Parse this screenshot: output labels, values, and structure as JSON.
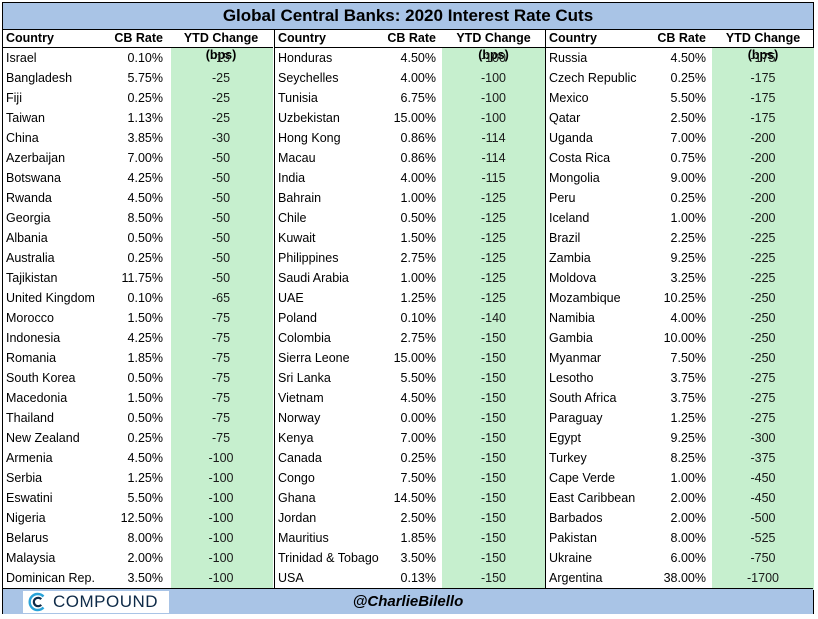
{
  "title": "Global Central Banks: 2020 Interest Rate Cuts",
  "headers": {
    "country": "Country",
    "rate": "CB Rate",
    "ytd": "YTD Change (bps)"
  },
  "columns": [
    [
      {
        "country": "Israel",
        "rate": "0.10%",
        "ytd": "-15"
      },
      {
        "country": "Bangladesh",
        "rate": "5.75%",
        "ytd": "-25"
      },
      {
        "country": "Fiji",
        "rate": "0.25%",
        "ytd": "-25"
      },
      {
        "country": "Taiwan",
        "rate": "1.13%",
        "ytd": "-25"
      },
      {
        "country": "China",
        "rate": "3.85%",
        "ytd": "-30"
      },
      {
        "country": "Azerbaijan",
        "rate": "7.00%",
        "ytd": "-50"
      },
      {
        "country": "Botswana",
        "rate": "4.25%",
        "ytd": "-50"
      },
      {
        "country": "Rwanda",
        "rate": "4.50%",
        "ytd": "-50"
      },
      {
        "country": "Georgia",
        "rate": "8.50%",
        "ytd": "-50"
      },
      {
        "country": "Albania",
        "rate": "0.50%",
        "ytd": "-50"
      },
      {
        "country": "Australia",
        "rate": "0.25%",
        "ytd": "-50"
      },
      {
        "country": "Tajikistan",
        "rate": "11.75%",
        "ytd": "-50"
      },
      {
        "country": "United Kingdom",
        "rate": "0.10%",
        "ytd": "-65"
      },
      {
        "country": "Morocco",
        "rate": "1.50%",
        "ytd": "-75"
      },
      {
        "country": "Indonesia",
        "rate": "4.25%",
        "ytd": "-75"
      },
      {
        "country": "Romania",
        "rate": "1.85%",
        "ytd": "-75"
      },
      {
        "country": "South Korea",
        "rate": "0.50%",
        "ytd": "-75"
      },
      {
        "country": "Macedonia",
        "rate": "1.50%",
        "ytd": "-75"
      },
      {
        "country": "Thailand",
        "rate": "0.50%",
        "ytd": "-75"
      },
      {
        "country": "New Zealand",
        "rate": "0.25%",
        "ytd": "-75"
      },
      {
        "country": "Armenia",
        "rate": "4.50%",
        "ytd": "-100"
      },
      {
        "country": "Serbia",
        "rate": "1.25%",
        "ytd": "-100"
      },
      {
        "country": "Eswatini",
        "rate": "5.50%",
        "ytd": "-100"
      },
      {
        "country": "Nigeria",
        "rate": "12.50%",
        "ytd": "-100"
      },
      {
        "country": "Belarus",
        "rate": "8.00%",
        "ytd": "-100"
      },
      {
        "country": "Malaysia",
        "rate": "2.00%",
        "ytd": "-100"
      },
      {
        "country": "Dominican Rep.",
        "rate": "3.50%",
        "ytd": "-100"
      }
    ],
    [
      {
        "country": "Honduras",
        "rate": "4.50%",
        "ytd": "-100"
      },
      {
        "country": "Seychelles",
        "rate": "4.00%",
        "ytd": "-100"
      },
      {
        "country": "Tunisia",
        "rate": "6.75%",
        "ytd": "-100"
      },
      {
        "country": "Uzbekistan",
        "rate": "15.00%",
        "ytd": "-100"
      },
      {
        "country": "Hong Kong",
        "rate": "0.86%",
        "ytd": "-114"
      },
      {
        "country": "Macau",
        "rate": "0.86%",
        "ytd": "-114"
      },
      {
        "country": "India",
        "rate": "4.00%",
        "ytd": "-115"
      },
      {
        "country": "Bahrain",
        "rate": "1.00%",
        "ytd": "-125"
      },
      {
        "country": "Chile",
        "rate": "0.50%",
        "ytd": "-125"
      },
      {
        "country": "Kuwait",
        "rate": "1.50%",
        "ytd": "-125"
      },
      {
        "country": "Philippines",
        "rate": "2.75%",
        "ytd": "-125"
      },
      {
        "country": "Saudi Arabia",
        "rate": "1.00%",
        "ytd": "-125"
      },
      {
        "country": "UAE",
        "rate": "1.25%",
        "ytd": "-125"
      },
      {
        "country": "Poland",
        "rate": "0.10%",
        "ytd": "-140"
      },
      {
        "country": "Colombia",
        "rate": "2.75%",
        "ytd": "-150"
      },
      {
        "country": "Sierra Leone",
        "rate": "15.00%",
        "ytd": "-150"
      },
      {
        "country": "Sri Lanka",
        "rate": "5.50%",
        "ytd": "-150"
      },
      {
        "country": "Vietnam",
        "rate": "4.50%",
        "ytd": "-150"
      },
      {
        "country": "Norway",
        "rate": "0.00%",
        "ytd": "-150"
      },
      {
        "country": "Kenya",
        "rate": "7.00%",
        "ytd": "-150"
      },
      {
        "country": "Canada",
        "rate": "0.25%",
        "ytd": "-150"
      },
      {
        "country": "Congo",
        "rate": "7.50%",
        "ytd": "-150"
      },
      {
        "country": "Ghana",
        "rate": "14.50%",
        "ytd": "-150"
      },
      {
        "country": "Jordan",
        "rate": "2.50%",
        "ytd": "-150"
      },
      {
        "country": "Mauritius",
        "rate": "1.85%",
        "ytd": "-150"
      },
      {
        "country": "Trinidad & Tobago",
        "rate": "3.50%",
        "ytd": "-150"
      },
      {
        "country": "USA",
        "rate": "0.13%",
        "ytd": "-150"
      }
    ],
    [
      {
        "country": "Russia",
        "rate": "4.50%",
        "ytd": "-175"
      },
      {
        "country": "Czech Republic",
        "rate": "0.25%",
        "ytd": "-175"
      },
      {
        "country": "Mexico",
        "rate": "5.50%",
        "ytd": "-175"
      },
      {
        "country": "Qatar",
        "rate": "2.50%",
        "ytd": "-175"
      },
      {
        "country": "Uganda",
        "rate": "7.00%",
        "ytd": "-200"
      },
      {
        "country": "Costa Rica",
        "rate": "0.75%",
        "ytd": "-200"
      },
      {
        "country": "Mongolia",
        "rate": "9.00%",
        "ytd": "-200"
      },
      {
        "country": "Peru",
        "rate": "0.25%",
        "ytd": "-200"
      },
      {
        "country": "Iceland",
        "rate": "1.00%",
        "ytd": "-200"
      },
      {
        "country": "Brazil",
        "rate": "2.25%",
        "ytd": "-225"
      },
      {
        "country": "Zambia",
        "rate": "9.25%",
        "ytd": "-225"
      },
      {
        "country": "Moldova",
        "rate": "3.25%",
        "ytd": "-225"
      },
      {
        "country": "Mozambique",
        "rate": "10.25%",
        "ytd": "-250"
      },
      {
        "country": "Namibia",
        "rate": "4.00%",
        "ytd": "-250"
      },
      {
        "country": "Gambia",
        "rate": "10.00%",
        "ytd": "-250"
      },
      {
        "country": "Myanmar",
        "rate": "7.50%",
        "ytd": "-250"
      },
      {
        "country": "Lesotho",
        "rate": "3.75%",
        "ytd": "-275"
      },
      {
        "country": "South Africa",
        "rate": "3.75%",
        "ytd": "-275"
      },
      {
        "country": "Paraguay",
        "rate": "1.25%",
        "ytd": "-275"
      },
      {
        "country": "Egypt",
        "rate": "9.25%",
        "ytd": "-300"
      },
      {
        "country": "Turkey",
        "rate": "8.25%",
        "ytd": "-375"
      },
      {
        "country": "Cape Verde",
        "rate": "1.00%",
        "ytd": "-450"
      },
      {
        "country": "East Caribbean",
        "rate": "2.00%",
        "ytd": "-450"
      },
      {
        "country": "Barbados",
        "rate": "2.00%",
        "ytd": "-500"
      },
      {
        "country": "Pakistan",
        "rate": "8.00%",
        "ytd": "-525"
      },
      {
        "country": "Ukraine",
        "rate": "6.00%",
        "ytd": "-750"
      },
      {
        "country": "Argentina",
        "rate": "38.00%",
        "ytd": "-1700"
      }
    ]
  ],
  "footer": {
    "logo_text": "COMPOUND",
    "handle": "@CharlieBilello"
  },
  "colors": {
    "header_bg": "#a9c4e6",
    "ytd_bg": "#c6efce",
    "logo": "#0e2a47"
  }
}
